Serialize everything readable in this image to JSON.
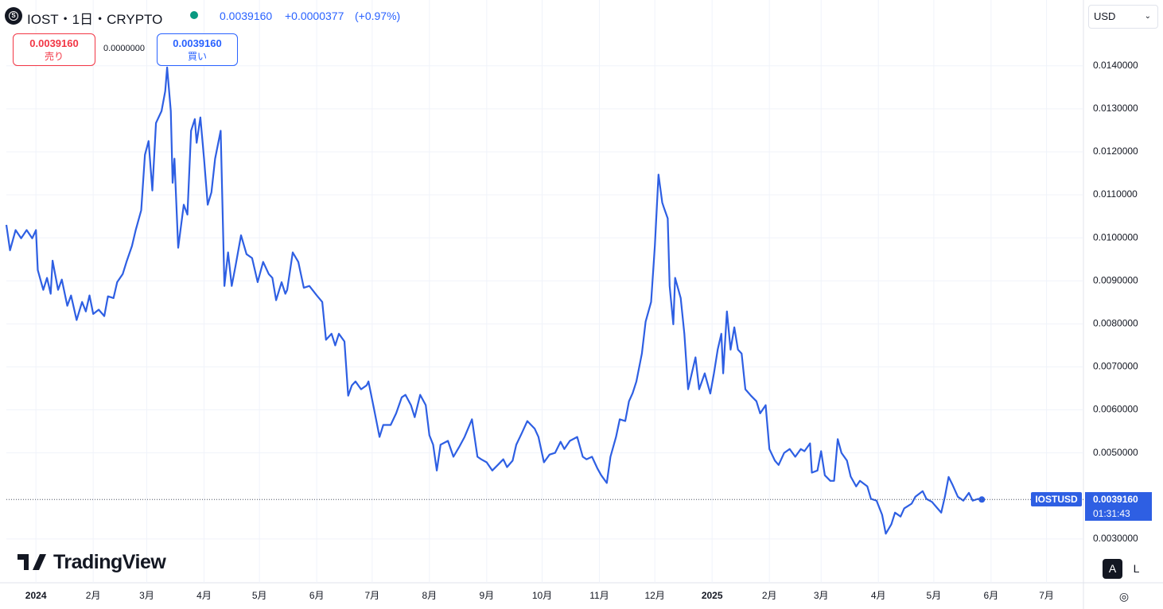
{
  "header": {
    "title": "IOST・1日・CRYPTO",
    "price": "0.0039160",
    "change": "+0.0000377",
    "change_pct": "(+0.97%)"
  },
  "trade": {
    "sell_price": "0.0039160",
    "sell_label": "売り",
    "spread": "0.0000000",
    "buy_price": "0.0039160",
    "buy_label": "買い"
  },
  "currency": "USD",
  "logo": "TradingView",
  "buttons": [
    "A",
    "L"
  ],
  "chart_data": {
    "type": "line",
    "x": [
      -16,
      -14,
      -11,
      -8,
      -5,
      -2,
      0,
      1,
      4,
      6,
      8,
      9,
      12,
      14,
      17,
      19,
      22,
      25,
      27,
      29,
      31,
      34,
      37,
      39,
      42,
      44,
      47,
      49,
      52,
      54,
      57,
      59,
      61,
      63,
      65,
      68,
      70,
      71,
      73,
      74,
      75,
      77,
      80,
      82,
      84,
      86,
      87,
      89,
      91,
      93,
      95,
      97,
      100,
      102,
      104,
      106,
      108,
      111,
      114,
      117,
      120,
      123,
      126,
      128,
      130,
      133,
      135,
      136,
      139,
      142,
      145,
      148,
      152,
      155,
      157,
      160,
      162,
      164,
      167,
      169,
      171,
      173,
      176,
      179,
      180,
      183,
      186,
      188,
      192,
      195,
      198,
      200,
      203,
      205,
      208,
      211,
      213,
      215,
      217,
      219,
      223,
      226,
      229,
      232,
      236,
      239,
      241,
      244,
      247,
      250,
      253,
      255,
      258,
      260,
      263,
      266,
      270,
      272,
      275,
      278,
      281,
      284,
      286,
      289,
      293,
      296,
      298,
      301,
      304,
      306,
      309,
      311,
      314,
      316,
      319,
      321,
      323,
      325,
      328,
      330,
      333,
      335,
      337,
      339,
      340,
      342,
      343,
      345,
      346,
      349,
      351,
      353,
      354,
      357,
      359,
      362,
      365,
      367,
      369,
      371,
      372,
      374,
      376,
      378,
      380,
      382,
      384,
      387,
      390,
      392,
      395,
      397,
      400,
      402,
      405,
      408,
      411,
      414,
      416,
      419,
      420,
      423,
      425,
      427,
      430,
      432,
      434,
      436,
      439,
      441,
      444,
      446,
      450,
      452,
      455,
      458,
      460,
      463,
      465,
      468,
      470,
      474,
      476,
      480,
      482,
      485,
      488,
      490,
      492,
      494,
      496,
      499,
      502,
      505,
      507,
      510,
      512
    ],
    "series": [
      {
        "name": "IOSTUSD",
        "color": "#2e5fe3",
        "values": [
          0.0103,
          0.00971,
          0.01018,
          0.00999,
          0.01018,
          0.00999,
          0.01018,
          0.00925,
          0.00879,
          0.00907,
          0.0087,
          0.00947,
          0.00879,
          0.00903,
          0.00842,
          0.00866,
          0.00809,
          0.00851,
          0.00829,
          0.00866,
          0.00823,
          0.00833,
          0.00818,
          0.00864,
          0.0086,
          0.00897,
          0.00916,
          0.00944,
          0.00981,
          0.01018,
          0.01064,
          0.01193,
          0.01225,
          0.0111,
          0.01267,
          0.01295,
          0.01341,
          0.01396,
          0.01295,
          0.01128,
          0.01184,
          0.00977,
          0.01077,
          0.01054,
          0.01249,
          0.01276,
          0.01221,
          0.0128,
          0.01184,
          0.01077,
          0.01106,
          0.01184,
          0.01249,
          0.00888,
          0.00966,
          0.00888,
          0.00934,
          0.01006,
          0.00962,
          0.00953,
          0.00897,
          0.00944,
          0.00916,
          0.00907,
          0.00855,
          0.00897,
          0.0087,
          0.00879,
          0.00966,
          0.00944,
          0.00884,
          0.00888,
          0.00866,
          0.00851,
          0.00763,
          0.00777,
          0.0075,
          0.00777,
          0.00759,
          0.00633,
          0.00657,
          0.00666,
          0.00648,
          0.00657,
          0.00666,
          0.00602,
          0.00537,
          0.00565,
          0.00565,
          0.00592,
          0.00629,
          0.00635,
          0.00611,
          0.00583,
          0.00635,
          0.00611,
          0.00541,
          0.00519,
          0.00459,
          0.00519,
          0.00528,
          0.00491,
          0.00513,
          0.00537,
          0.00578,
          0.00491,
          0.00485,
          0.00478,
          0.00459,
          0.00472,
          0.00485,
          0.00467,
          0.00482,
          0.00519,
          0.00546,
          0.00574,
          0.00556,
          0.00537,
          0.00478,
          0.00496,
          0.005,
          0.00526,
          0.00509,
          0.00528,
          0.00537,
          0.00491,
          0.00485,
          0.00491,
          0.00463,
          0.00448,
          0.0043,
          0.00491,
          0.00537,
          0.00578,
          0.00574,
          0.0062,
          0.00639,
          0.00666,
          0.00731,
          0.00805,
          0.00851,
          0.00981,
          0.01147,
          0.01082,
          0.01069,
          0.01045,
          0.00888,
          0.00799,
          0.00907,
          0.0086,
          0.00777,
          0.00648,
          0.00666,
          0.00722,
          0.00648,
          0.00685,
          0.00638,
          0.00685,
          0.0074,
          0.00777,
          0.00685,
          0.00829,
          0.0074,
          0.00792,
          0.0074,
          0.00731,
          0.00648,
          0.00633,
          0.0062,
          0.00592,
          0.00611,
          0.00509,
          0.00482,
          0.00472,
          0.005,
          0.00509,
          0.00491,
          0.00509,
          0.00504,
          0.00522,
          0.00454,
          0.00459,
          0.00504,
          0.00448,
          0.00435,
          0.00435,
          0.00532,
          0.005,
          0.00482,
          0.00445,
          0.00422,
          0.00435,
          0.00422,
          0.00393,
          0.00389,
          0.00356,
          0.00312,
          0.00334,
          0.00361,
          0.00352,
          0.00371,
          0.00382,
          0.00398,
          0.00411,
          0.00393,
          0.00386,
          0.00371,
          0.00361,
          0.00398,
          0.00444,
          0.00427,
          0.00398,
          0.00389,
          0.00407,
          0.00389,
          0.00393,
          0.003916
        ]
      }
    ],
    "xlim": [
      -16,
      567
    ],
    "xticks": [
      {
        "value": 0,
        "label": "2024"
      },
      {
        "value": 31,
        "label": "2月"
      },
      {
        "value": 60,
        "label": "3月"
      },
      {
        "value": 91,
        "label": "4月"
      },
      {
        "value": 121,
        "label": "5月"
      },
      {
        "value": 152,
        "label": "6月"
      },
      {
        "value": 182,
        "label": "7月"
      },
      {
        "value": 213,
        "label": "8月"
      },
      {
        "value": 244,
        "label": "9月"
      },
      {
        "value": 274,
        "label": "10月"
      },
      {
        "value": 305,
        "label": "11月"
      },
      {
        "value": 335,
        "label": "12月"
      },
      {
        "value": 366,
        "label": "2025"
      },
      {
        "value": 397,
        "label": "2月"
      },
      {
        "value": 425,
        "label": "3月"
      },
      {
        "value": 456,
        "label": "4月"
      },
      {
        "value": 486,
        "label": "5月"
      },
      {
        "value": 517,
        "label": "6月"
      },
      {
        "value": 547,
        "label": "7月"
      }
    ],
    "ylim": [
      0.00198,
      0.01553
    ],
    "yticks": [
      {
        "value": 0.003,
        "label": "0.0030000"
      },
      {
        "value": 0.005,
        "label": "0.0050000"
      },
      {
        "value": 0.006,
        "label": "0.0060000"
      },
      {
        "value": 0.007,
        "label": "0.0070000"
      },
      {
        "value": 0.008,
        "label": "0.0080000"
      },
      {
        "value": 0.009,
        "label": "0.0090000"
      },
      {
        "value": 0.01,
        "label": "0.0100000"
      },
      {
        "value": 0.011,
        "label": "0.0110000"
      },
      {
        "value": 0.012,
        "label": "0.0120000"
      },
      {
        "value": 0.013,
        "label": "0.0130000"
      },
      {
        "value": 0.014,
        "label": "0.0140000"
      }
    ],
    "price_line": {
      "value": 0.003916,
      "label": "0.0039160"
    },
    "countdown": "01:31:43",
    "grid": true
  }
}
